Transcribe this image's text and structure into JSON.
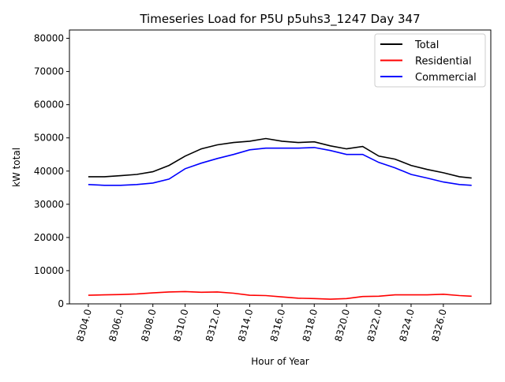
{
  "chart_data": {
    "type": "line",
    "title": "Timeseries Load for P5U p5uhs3_1247  Day 347",
    "xlabel": "Hour of Year",
    "ylabel": "kW total",
    "xlim": [
      8302.83,
      8328.94
    ],
    "ylim": [
      0,
      82500
    ],
    "xticks": [
      8304,
      8306,
      8308,
      8310,
      8312,
      8314,
      8316,
      8318,
      8320,
      8322,
      8324,
      8326
    ],
    "xtick_labels": [
      "8304.0",
      "8306.0",
      "8308.0",
      "8310.0",
      "8312.0",
      "8314.0",
      "8316.0",
      "8318.0",
      "8320.0",
      "8322.0",
      "8324.0",
      "8326.0"
    ],
    "yticks": [
      0,
      10000,
      20000,
      30000,
      40000,
      50000,
      60000,
      70000,
      80000
    ],
    "ytick_labels": [
      "0",
      "10000",
      "20000",
      "30000",
      "40000",
      "50000",
      "60000",
      "70000",
      "80000"
    ],
    "grid": false,
    "legend_position": "top-right",
    "x": [
      8304,
      8305,
      8306,
      8307,
      8308,
      8309,
      8310,
      8311,
      8312,
      8313,
      8314,
      8315,
      8316,
      8317,
      8318,
      8319,
      8320,
      8321,
      8322,
      8323,
      8324,
      8325,
      8326,
      8327,
      8327.75
    ],
    "series": [
      {
        "name": "Total",
        "color": "#000000",
        "values": [
          38300,
          38300,
          38600,
          39000,
          39800,
          41700,
          44500,
          46700,
          47900,
          48600,
          49000,
          49800,
          49000,
          48600,
          48800,
          47600,
          46700,
          47400,
          44500,
          43600,
          41700,
          40500,
          39500,
          38300,
          37900
        ]
      },
      {
        "name": "Residential",
        "color": "#ff0000",
        "values": [
          2600,
          2700,
          2800,
          3000,
          3300,
          3600,
          3700,
          3500,
          3600,
          3200,
          2600,
          2500,
          2100,
          1700,
          1600,
          1400,
          1600,
          2200,
          2300,
          2700,
          2700,
          2700,
          2900,
          2500,
          2300
        ]
      },
      {
        "name": "Commercial",
        "color": "#0000ff",
        "values": [
          35950,
          35700,
          35700,
          35950,
          36400,
          37600,
          40700,
          42400,
          43800,
          45000,
          46400,
          46900,
          46900,
          46900,
          47100,
          46200,
          45000,
          45000,
          42600,
          41000,
          39000,
          37900,
          36700,
          35950,
          35700
        ]
      }
    ]
  }
}
